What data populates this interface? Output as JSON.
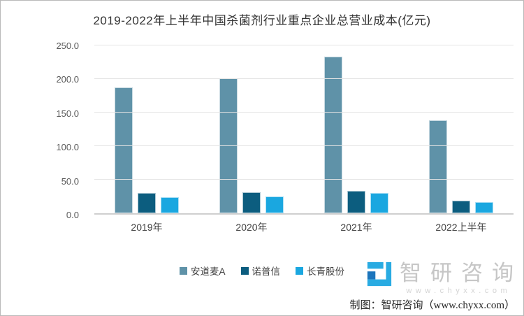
{
  "title": "2019-2022年上半年中国杀菌剂行业重点企业总营业成本(亿元)",
  "chart_data": {
    "type": "bar",
    "title": "2019-2022年上半年中国杀菌剂行业重点企业总营业成本(亿元)",
    "categories": [
      "2019年",
      "2020年",
      "2021年",
      "2022上半年"
    ],
    "series": [
      {
        "name": "安道麦A",
        "color": "#5f92a8",
        "values": [
          187,
          201,
          233.5,
          139
        ]
      },
      {
        "name": "诺普信",
        "color": "#0c5d7f",
        "values": [
          30,
          31,
          33,
          19
        ]
      },
      {
        "name": "长青股份",
        "color": "#1aa7e0",
        "values": [
          24,
          25,
          30,
          17
        ]
      }
    ],
    "xlabel": "",
    "ylabel": "",
    "ylim": [
      0,
      250
    ],
    "yticks": [
      "250.0",
      "200.0",
      "150.0",
      "100.0",
      "50.0",
      "0.0"
    ],
    "grid": true,
    "legend_position": "bottom"
  },
  "footer": {
    "brand_name": "智研咨询",
    "brand_url": "www.chyxx.com",
    "credit": "制图：智研咨询（www.chyxx.com）"
  },
  "colors": {
    "series1": "#5f92a8",
    "series2": "#0c5d7f",
    "series3": "#1aa7e0",
    "logo_light": "#29abe2",
    "logo_dark": "#1c75bc"
  }
}
